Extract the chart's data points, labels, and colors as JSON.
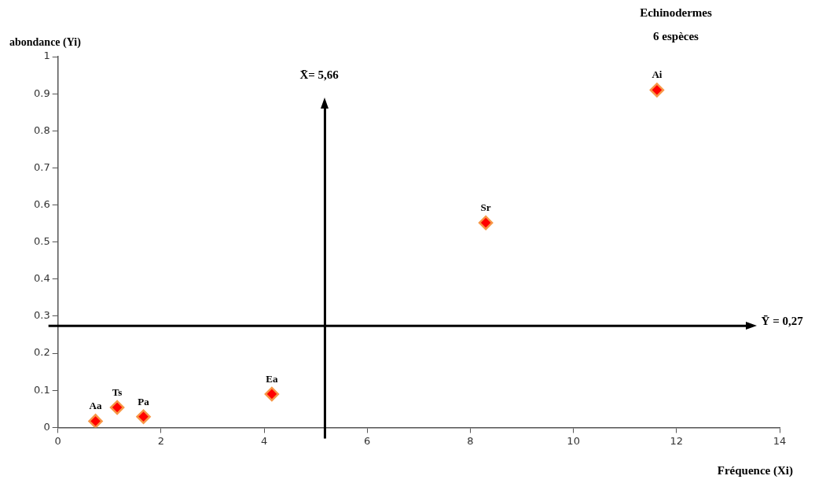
{
  "chart_data": {
    "type": "scatter",
    "title": "Echinodermes",
    "subtitle": "6 espèces",
    "xlabel": "Fréquence (Xi)",
    "ylabel": "abondance (Yi)",
    "series": [
      {
        "name": "Aa",
        "color": "#ff0000",
        "x": [
          0.73
        ],
        "values": [
          0.017
        ]
      },
      {
        "name": "Ts",
        "color": "#ff0000",
        "x": [
          1.15
        ],
        "values": [
          0.054
        ]
      },
      {
        "name": "Pa",
        "color": "#ff0000",
        "x": [
          1.66
        ],
        "values": [
          0.029
        ]
      },
      {
        "name": "Ea",
        "color": "#ff0000",
        "x": [
          4.15
        ],
        "values": [
          0.09
        ]
      },
      {
        "name": "Sr",
        "color": "#ff0000",
        "x": [
          8.3
        ],
        "values": [
          0.552
        ]
      },
      {
        "name": "Ai",
        "color": "#ff0000",
        "x": [
          11.62
        ],
        "values": [
          0.91
        ]
      }
    ],
    "xlim": [
      0,
      14
    ],
    "xticks": [
      0,
      2,
      4,
      6,
      8,
      10,
      12,
      14
    ],
    "ylim": [
      0,
      1
    ],
    "yticks": [
      0,
      0.1,
      0.2,
      0.3,
      0.4,
      0.5,
      0.6,
      0.7,
      0.8,
      0.9,
      1
    ],
    "ref_lines": [
      {
        "axis": "x",
        "value": 5.18,
        "color": "#000000"
      },
      {
        "axis": "y",
        "value": 0.274,
        "label": "Ȳ = 0,27",
        "color": "#000000"
      }
    ],
    "annotations": [
      "X̄= 5,66"
    ],
    "marker": "diamond",
    "grid": false,
    "legend": false
  }
}
